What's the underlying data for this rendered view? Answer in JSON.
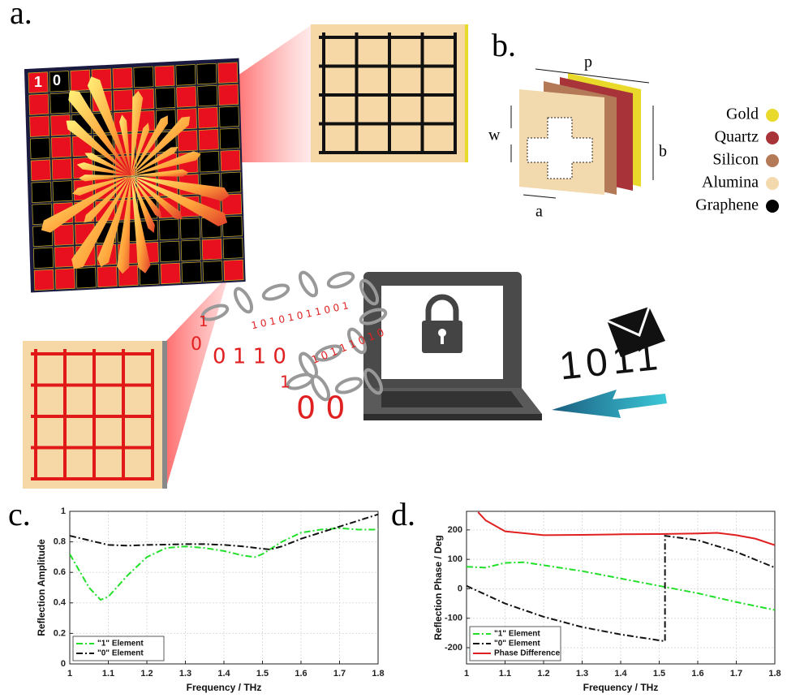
{
  "panels": [
    "a.",
    "b.",
    "c.",
    "d."
  ],
  "illustration": {
    "grid_labels": [
      "1",
      "0"
    ],
    "dimensions": {
      "p": "p",
      "w": "w",
      "b": "b",
      "a": "a"
    },
    "materials": [
      {
        "name": "Gold",
        "color": "#e8d92a"
      },
      {
        "name": "Quartz",
        "color": "#a8343a"
      },
      {
        "name": "Silicon",
        "color": "#b47a58"
      },
      {
        "name": "Alumina",
        "color": "#f3d9ae"
      },
      {
        "name": "Graphene",
        "color": "#000000"
      }
    ],
    "binary": [
      "1",
      "0",
      "0 1 1 0",
      "1 0 1 0 1 0 1 1 0 0 1",
      "1 0 1 1 1 0 1 0",
      "1",
      "0 0"
    ],
    "message": "1011"
  },
  "chart_data": [
    {
      "type": "line",
      "xlabel": "Frequency / THz",
      "ylabel": "Reflection Amplitude",
      "xlim": [
        1,
        1.8
      ],
      "xticks": [
        1,
        1.1,
        1.2,
        1.3,
        1.4,
        1.5,
        1.6,
        1.7,
        1.8
      ],
      "ylim": [
        0,
        1
      ],
      "yticks": [
        0,
        0.2,
        0.4,
        0.6,
        0.8,
        1
      ],
      "grid": true,
      "legend": "lower left",
      "series": [
        {
          "name": "\"1\" Element",
          "color": "#22e02a",
          "style": "dash-dot",
          "x": [
            1,
            1.05,
            1.08,
            1.1,
            1.15,
            1.2,
            1.25,
            1.3,
            1.35,
            1.4,
            1.45,
            1.48,
            1.5,
            1.55,
            1.6,
            1.65,
            1.7,
            1.75,
            1.8
          ],
          "values": [
            0.72,
            0.5,
            0.42,
            0.44,
            0.58,
            0.7,
            0.76,
            0.77,
            0.76,
            0.74,
            0.71,
            0.7,
            0.72,
            0.8,
            0.86,
            0.88,
            0.89,
            0.88,
            0.88
          ]
        },
        {
          "name": "\"0\" Element",
          "color": "#111111",
          "style": "dash-dot",
          "x": [
            1,
            1.05,
            1.1,
            1.15,
            1.2,
            1.25,
            1.3,
            1.35,
            1.4,
            1.45,
            1.5,
            1.52,
            1.55,
            1.6,
            1.65,
            1.7,
            1.75,
            1.8
          ],
          "values": [
            0.84,
            0.81,
            0.78,
            0.775,
            0.78,
            0.782,
            0.785,
            0.785,
            0.78,
            0.77,
            0.755,
            0.75,
            0.77,
            0.82,
            0.86,
            0.9,
            0.94,
            0.98
          ]
        }
      ]
    },
    {
      "type": "line",
      "xlabel": "Frequency / THz",
      "ylabel": "Reflection Phase / Deg",
      "xlim": [
        1,
        1.8
      ],
      "xticks": [
        1,
        1.1,
        1.2,
        1.3,
        1.4,
        1.5,
        1.6,
        1.7,
        1.8
      ],
      "ylim": [
        -255,
        263
      ],
      "yticks": [
        -200,
        -100,
        0,
        100,
        200
      ],
      "grid": true,
      "legend": "lower left",
      "series": [
        {
          "name": "\"1\" Element",
          "color": "#22e02a",
          "style": "dash-dot",
          "x": [
            1,
            1.05,
            1.1,
            1.15,
            1.2,
            1.3,
            1.4,
            1.5,
            1.6,
            1.7,
            1.8
          ],
          "values": [
            75,
            72,
            88,
            90,
            80,
            60,
            35,
            10,
            -15,
            -45,
            -72
          ]
        },
        {
          "name": "\"0\" Element",
          "color": "#111111",
          "style": "dash-dot",
          "x": [
            1,
            1.1,
            1.2,
            1.3,
            1.4,
            1.5,
            1.515,
            1.515,
            1.6,
            1.7,
            1.8
          ],
          "values": [
            10,
            -50,
            -95,
            -130,
            -155,
            -175,
            -178,
            180,
            165,
            125,
            72
          ]
        },
        {
          "name": "Phase Difference",
          "color": "#e02020",
          "style": "solid",
          "x": [
            1.03,
            1.05,
            1.1,
            1.2,
            1.3,
            1.4,
            1.5,
            1.6,
            1.65,
            1.7,
            1.75,
            1.8
          ],
          "values": [
            260,
            232,
            195,
            182,
            183,
            185,
            186,
            188,
            190,
            182,
            170,
            148
          ]
        }
      ]
    }
  ]
}
